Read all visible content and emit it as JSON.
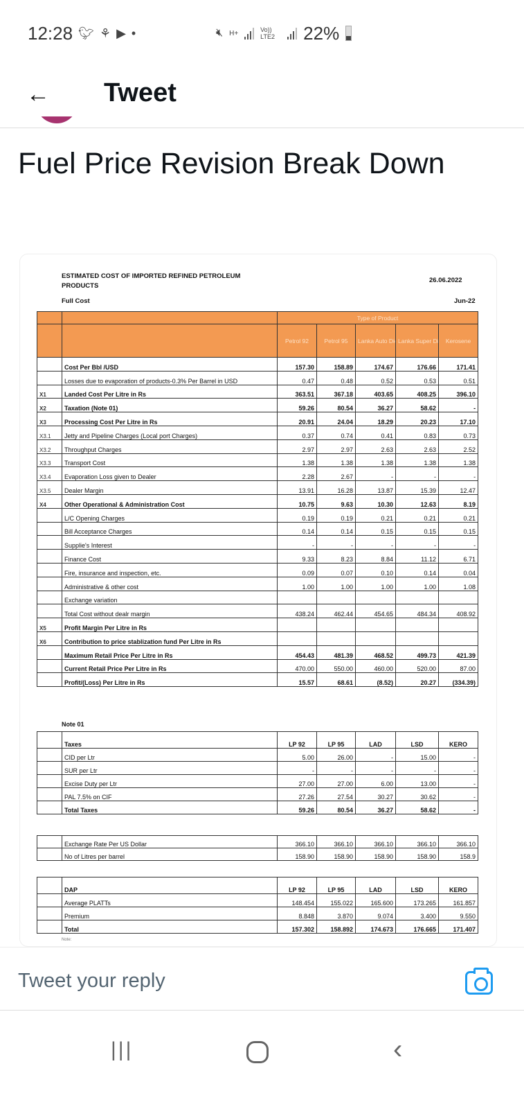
{
  "status_bar": {
    "time": "12:28",
    "icons": [
      "twitter-icon",
      "notification-icon",
      "youtube-icon",
      "dot-icon",
      "mute-icon",
      "h-plus-data-icon",
      "signal-icon",
      "volte-lte2-icon",
      "signal-icon",
      "battery-icon"
    ],
    "network": "H+",
    "lte": "Vo)) LTE2",
    "battery": "22%"
  },
  "header": {
    "title": "Tweet",
    "back_icon": "arrow-left-icon"
  },
  "tweet": {
    "text": "Fuel Price Revision Break Down"
  },
  "document": {
    "title_line1": "ESTIMATED COST OF IMPORTED REFINED PETROLEUM",
    "title_line2": "PRODUCTS",
    "subtitle": "Full Cost",
    "date": "26.06.2022",
    "month": "Jun-22",
    "header_color": "#f39a52",
    "type_of_product": "Type of Product",
    "columns": [
      "Petrol 92",
      "Petrol 95",
      "Lanka Auto Diesel",
      "Lanka Super Diesel",
      "Kerosene"
    ],
    "rows": [
      {
        "code": "",
        "label": "Cost Per Bbl /USD",
        "values": [
          "157.30",
          "158.89",
          "174.67",
          "176.66",
          "171.41"
        ],
        "bold": true
      },
      {
        "code": "",
        "label": "Losses due to evaporation of products-0.3% Per Barrel in USD",
        "values": [
          "0.47",
          "0.48",
          "0.52",
          "0.53",
          "0.51"
        ],
        "bold": false
      },
      {
        "code": "X1",
        "label": "Landed Cost Per Litre in Rs",
        "values": [
          "363.51",
          "367.18",
          "403.65",
          "408.25",
          "396.10"
        ],
        "bold": true
      },
      {
        "code": "X2",
        "label": "Taxation (Note 01)",
        "values": [
          "59.26",
          "80.54",
          "36.27",
          "58.62",
          "-"
        ],
        "bold": true
      },
      {
        "code": "X3",
        "label": "Processing Cost Per Litre in Rs",
        "values": [
          "20.91",
          "24.04",
          "18.29",
          "20.23",
          "17.10"
        ],
        "bold": true
      },
      {
        "code": "X3.1",
        "label": "Jetty and Pipeline Charges (Local port Charges)",
        "values": [
          "0.37",
          "0.74",
          "0.41",
          "0.83",
          "0.73"
        ],
        "bold": false
      },
      {
        "code": "X3.2",
        "label": "Throughput Charges",
        "values": [
          "2.97",
          "2.97",
          "2.63",
          "2.63",
          "2.52"
        ],
        "bold": false
      },
      {
        "code": "X3.3",
        "label": "Transport Cost",
        "values": [
          "1.38",
          "1.38",
          "1.38",
          "1.38",
          "1.38"
        ],
        "bold": false
      },
      {
        "code": "X3.4",
        "label": "Evaporation Loss given to Dealer",
        "values": [
          "2.28",
          "2.67",
          "-",
          "-",
          "-"
        ],
        "bold": false
      },
      {
        "code": "X3.5",
        "label": "Dealer Margin",
        "values": [
          "13.91",
          "16.28",
          "13.87",
          "15.39",
          "12.47"
        ],
        "bold": false
      },
      {
        "code": "X4",
        "label": "Other Operational & Administration Cost",
        "values": [
          "10.75",
          "9.63",
          "10.30",
          "12.63",
          "8.19"
        ],
        "bold": true
      },
      {
        "code": "",
        "label": "L/C Opening Charges",
        "values": [
          "0.19",
          "0.19",
          "0.21",
          "0.21",
          "0.21"
        ],
        "bold": false
      },
      {
        "code": "",
        "label": "Bill Acceptance Charges",
        "values": [
          "0.14",
          "0.14",
          "0.15",
          "0.15",
          "0.15"
        ],
        "bold": false
      },
      {
        "code": "",
        "label": "Supplie's Interest",
        "values": [
          "-",
          "-",
          "-",
          "-",
          "-"
        ],
        "bold": false
      },
      {
        "code": "",
        "label": "Finance Cost",
        "values": [
          "9.33",
          "8.23",
          "8.84",
          "11.12",
          "6.71"
        ],
        "bold": false
      },
      {
        "code": "",
        "label": "Fire, insurance and inspection, etc.",
        "values": [
          "0.09",
          "0.07",
          "0.10",
          "0.14",
          "0.04"
        ],
        "bold": false
      },
      {
        "code": "",
        "label": "Administrative & other cost",
        "values": [
          "1.00",
          "1.00",
          "1.00",
          "1.00",
          "1.08"
        ],
        "bold": false
      },
      {
        "code": "",
        "label": "Exchange variation",
        "values": [
          "",
          "",
          "",
          "",
          ""
        ],
        "bold": false
      },
      {
        "code": "",
        "label": "Total Cost without dealr margin",
        "values": [
          "438.24",
          "462.44",
          "454.65",
          "484.34",
          "408.92"
        ],
        "bold": false
      },
      {
        "code": "X5",
        "label": "Profit Margin Per Litre in Rs",
        "values": [
          "",
          "",
          "",
          "",
          ""
        ],
        "bold": true
      },
      {
        "code": "X6",
        "label": "Contribution to price stablization fund Per Litre in Rs",
        "values": [
          "",
          "",
          "",
          "",
          ""
        ],
        "bold": true
      },
      {
        "code": "",
        "label": "Maximum Retail Price Per Litre in Rs",
        "values": [
          "454.43",
          "481.39",
          "468.52",
          "499.73",
          "421.39"
        ],
        "bold": true
      },
      {
        "code": "",
        "label": "Current Retail Price Per Litre in Rs",
        "values": [
          "470.00",
          "550.00",
          "460.00",
          "520.00",
          "87.00"
        ],
        "bold": true,
        "values_normal": true
      },
      {
        "code": "",
        "label": "Profit/(Loss) Per Litre in Rs",
        "values": [
          "15.57",
          "68.61",
          "(8.52)",
          "20.27",
          "(334.39)"
        ],
        "bold": true
      }
    ],
    "note_title": "Note 01",
    "taxes": {
      "header": [
        "Taxes",
        "LP 92",
        "LP 95",
        "LAD",
        "LSD",
        "KERO"
      ],
      "rows": [
        {
          "label": "CID per Ltr",
          "values": [
            "5.00",
            "26.00",
            "-",
            "15.00",
            "-"
          ]
        },
        {
          "label": "SUR per Ltr",
          "values": [
            "-",
            "-",
            "-",
            "-",
            "-"
          ]
        },
        {
          "label": "Excise Duty per Ltr",
          "values": [
            "27.00",
            "27.00",
            "6.00",
            "13.00",
            "-"
          ]
        },
        {
          "label": "PAL 7.5% on CIF",
          "values": [
            "27.26",
            "27.54",
            "30.27",
            "30.62",
            "-"
          ]
        },
        {
          "label": "Total Taxes",
          "values": [
            "59.26",
            "80.54",
            "36.27",
            "58.62",
            "-"
          ],
          "bold": true
        }
      ]
    },
    "exchange": {
      "rows": [
        {
          "label": "Exchange Rate Per US Dollar",
          "values": [
            "366.10",
            "366.10",
            "366.10",
            "366.10",
            "366.10"
          ]
        },
        {
          "label": "No of Litres per barrel",
          "values": [
            "158.90",
            "158.90",
            "158.90",
            "158.90",
            "158.9"
          ]
        }
      ]
    },
    "dap": {
      "header": [
        "DAP",
        "LP 92",
        "LP 95",
        "LAD",
        "LSD",
        "KERO"
      ],
      "rows": [
        {
          "label": "Average PLATTs",
          "values": [
            "148.454",
            "155.022",
            "165.600",
            "173.265",
            "161.857"
          ]
        },
        {
          "label": "Premium",
          "values": [
            "8.848",
            "3.870",
            "9.074",
            "3.400",
            "9.550"
          ]
        },
        {
          "label": "Total",
          "values": [
            "157.302",
            "158.892",
            "174.673",
            "176.665",
            "171.407"
          ],
          "bold": true
        }
      ]
    },
    "footnote": "Note:"
  },
  "reply": {
    "placeholder": "Tweet your reply",
    "camera_icon": "camera-icon",
    "accent": "#1d9bf0"
  },
  "navbar": {
    "icons": [
      "recent-apps-icon",
      "home-icon",
      "back-icon"
    ]
  }
}
